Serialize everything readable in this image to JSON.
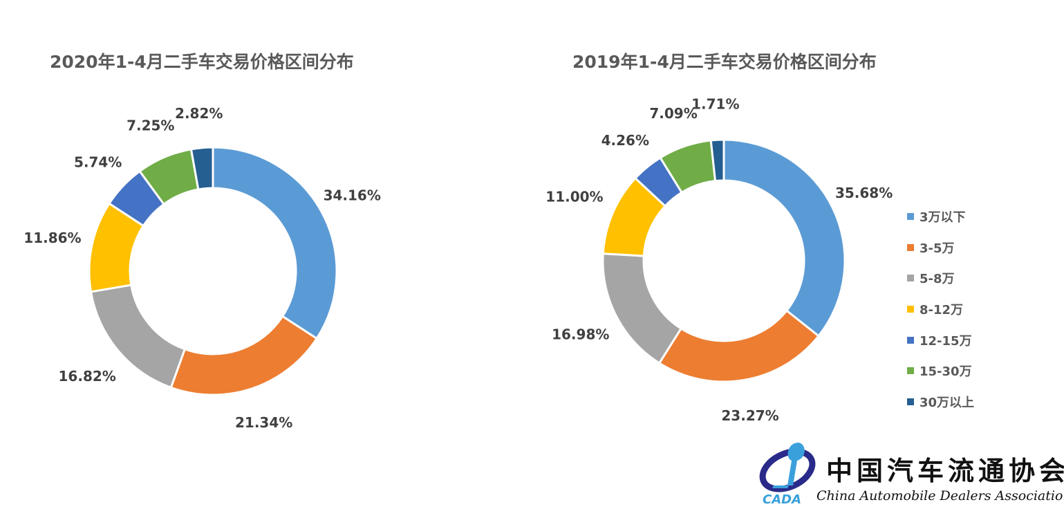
{
  "legend": {
    "entries": [
      {
        "label": "3万以下",
        "color": "#5B9BD5"
      },
      {
        "label": "3-5万",
        "color": "#ED7D31"
      },
      {
        "label": "5-8万",
        "color": "#A5A5A5"
      },
      {
        "label": "8-12万",
        "color": "#FFC000"
      },
      {
        "label": "12-15万",
        "color": "#4472C4"
      },
      {
        "label": "15-30万",
        "color": "#70AD47"
      },
      {
        "label": "30万以上",
        "color": "#255E91"
      }
    ]
  },
  "chart_data": [
    {
      "type": "pie",
      "title": "2020年1-4月二手车交易价格区间分布",
      "categories": [
        "3万以下",
        "3-5万",
        "5-8万",
        "8-12万",
        "12-15万",
        "15-30万",
        "30万以上"
      ],
      "values": [
        34.16,
        21.34,
        16.82,
        11.86,
        5.74,
        7.25,
        2.82
      ],
      "labels": [
        "34.16%",
        "21.34%",
        "16.82%",
        "11.86%",
        "5.74%",
        "7.25%",
        "2.82%"
      ],
      "donut": true
    },
    {
      "type": "pie",
      "title": "2019年1-4月二手车交易价格区间分布",
      "categories": [
        "3万以下",
        "3-5万",
        "5-8万",
        "8-12万",
        "12-15万",
        "15-30万",
        "30万以上"
      ],
      "values": [
        35.68,
        23.27,
        16.98,
        11.0,
        4.26,
        7.09,
        1.71
      ],
      "labels": [
        "35.68%",
        "23.27%",
        "16.98%",
        "11.00%",
        "4.26%",
        "7.09%",
        "1.71%"
      ],
      "donut": true,
      "legend": "right"
    }
  ],
  "logo": {
    "mark_text": "CADA",
    "name_cn": "中国汽车流通协会",
    "name_en": "China Automobile Dealers Association"
  }
}
